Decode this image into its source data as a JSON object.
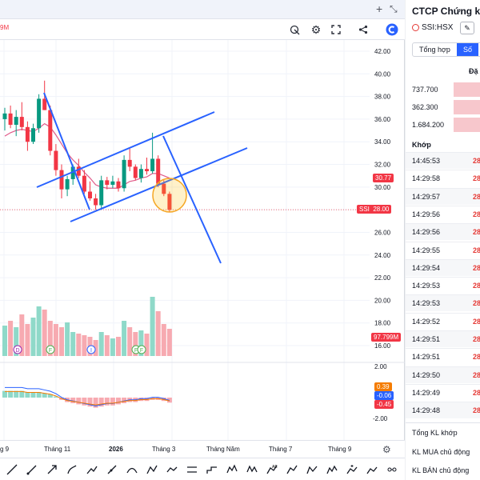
{
  "header": {
    "left_value_fragment": "9M",
    "top_icons": [
      "plus-icon",
      "expand-icon"
    ],
    "header_icons": [
      "replay-icon",
      "gear-icon",
      "fullscreen-icon",
      "share-icon",
      "logo-icon"
    ]
  },
  "chart_data": {
    "type": "candlestick",
    "price_axis_ticks": [
      "42.00",
      "40.00",
      "38.00",
      "36.00",
      "34.00",
      "32.00",
      "30.00",
      "28.00",
      "26.00",
      "24.00",
      "22.00",
      "20.00",
      "18.00",
      "16.00"
    ],
    "price_range": [
      16,
      43
    ],
    "indicator_axis_ticks": [
      "2.00",
      "-2.00"
    ],
    "current_price": {
      "symbol": "SSI",
      "value": "28.00",
      "color": "#f23645"
    },
    "ma_value": {
      "value": "30.77",
      "color": "#f23645"
    },
    "volume_label": {
      "value": "97.799M",
      "color": "#f23645"
    },
    "macd_labels": [
      {
        "value": "0.39",
        "color": "#f57c00"
      },
      {
        "value": "-0.06",
        "color": "#2962ff"
      },
      {
        "value": "-0.45",
        "color": "#f23645"
      }
    ],
    "x_labels": [
      "g 9",
      "Tháng 11",
      "2026",
      "Tháng 3",
      "Tháng Năm",
      "Tháng 7",
      "Tháng 9"
    ],
    "event_markers": [
      "D",
      "F",
      "I",
      "F",
      "F",
      "D"
    ],
    "candles": [
      {
        "o": 36.0,
        "h": 37.0,
        "l": 35.0,
        "c": 36.5
      },
      {
        "o": 36.5,
        "h": 37.2,
        "l": 35.2,
        "c": 35.5
      },
      {
        "o": 35.5,
        "h": 36.8,
        "l": 34.5,
        "c": 36.2
      },
      {
        "o": 36.2,
        "h": 37.5,
        "l": 35.0,
        "c": 35.3
      },
      {
        "o": 35.3,
        "h": 35.8,
        "l": 33.2,
        "c": 34.0
      },
      {
        "o": 34.0,
        "h": 35.6,
        "l": 33.8,
        "c": 35.2
      },
      {
        "o": 35.2,
        "h": 38.2,
        "l": 34.8,
        "c": 37.8
      },
      {
        "o": 37.8,
        "h": 39.4,
        "l": 36.8,
        "c": 36.8
      },
      {
        "o": 36.8,
        "h": 37.2,
        "l": 32.8,
        "c": 33.2
      },
      {
        "o": 33.2,
        "h": 33.8,
        "l": 31.0,
        "c": 31.5
      },
      {
        "o": 31.5,
        "h": 32.0,
        "l": 29.0,
        "c": 29.8
      },
      {
        "o": 29.8,
        "h": 31.0,
        "l": 29.2,
        "c": 30.7
      },
      {
        "o": 30.7,
        "h": 32.0,
        "l": 30.2,
        "c": 31.8
      },
      {
        "o": 31.8,
        "h": 32.5,
        "l": 30.8,
        "c": 31.0
      },
      {
        "o": 31.0,
        "h": 31.5,
        "l": 29.4,
        "c": 29.6
      },
      {
        "o": 29.6,
        "h": 30.5,
        "l": 28.8,
        "c": 29.0
      },
      {
        "o": 29.0,
        "h": 29.4,
        "l": 28.0,
        "c": 28.4
      },
      {
        "o": 28.4,
        "h": 31.0,
        "l": 28.0,
        "c": 30.6
      },
      {
        "o": 30.6,
        "h": 30.9,
        "l": 29.8,
        "c": 30.2
      },
      {
        "o": 30.2,
        "h": 31.0,
        "l": 29.9,
        "c": 30.5
      },
      {
        "o": 30.5,
        "h": 30.8,
        "l": 29.6,
        "c": 29.9
      },
      {
        "o": 29.9,
        "h": 32.8,
        "l": 29.6,
        "c": 32.4
      },
      {
        "o": 32.4,
        "h": 33.4,
        "l": 31.4,
        "c": 31.8
      },
      {
        "o": 31.8,
        "h": 32.0,
        "l": 30.6,
        "c": 30.8
      },
      {
        "o": 30.8,
        "h": 32.0,
        "l": 30.4,
        "c": 31.6
      },
      {
        "o": 31.6,
        "h": 32.6,
        "l": 31.1,
        "c": 31.4
      },
      {
        "o": 31.4,
        "h": 34.8,
        "l": 31.2,
        "c": 32.5
      },
      {
        "o": 32.5,
        "h": 32.8,
        "l": 30.0,
        "c": 30.3
      },
      {
        "o": 30.3,
        "h": 30.6,
        "l": 29.2,
        "c": 29.4
      },
      {
        "o": 29.4,
        "h": 29.6,
        "l": 27.8,
        "c": 28.0
      }
    ],
    "ma_line": [
      34.5,
      34.8,
      35.0,
      35.1,
      35.0,
      34.9,
      35.2,
      35.6,
      35.3,
      34.6,
      33.8,
      33.0,
      32.4,
      31.9,
      31.3,
      30.8,
      30.2,
      30.0,
      29.9,
      29.9,
      29.9,
      30.2,
      30.5,
      30.6,
      30.8,
      30.9,
      31.2,
      31.2,
      31.0,
      30.8
    ],
    "volumes": [
      38,
      44,
      36,
      52,
      40,
      48,
      62,
      58,
      44,
      40,
      36,
      42,
      30,
      28,
      26,
      24,
      20,
      30,
      26,
      22,
      24,
      44,
      36,
      30,
      32,
      28,
      74,
      56,
      40,
      34
    ],
    "macd_hist": [
      0.6,
      0.6,
      0.6,
      0.6,
      0.5,
      0.5,
      0.5,
      0.4,
      0.3,
      0.1,
      -0.2,
      -0.4,
      -0.5,
      -0.6,
      -0.7,
      -0.8,
      -0.9,
      -0.8,
      -0.7,
      -0.7,
      -0.6,
      -0.5,
      -0.4,
      -0.4,
      -0.3,
      -0.3,
      -0.2,
      -0.2,
      -0.3,
      -0.45
    ]
  },
  "right_panel": {
    "title": "CTCP Chứng kho",
    "symbol": "SSI:HSX",
    "tabs": [
      "Tổng hợp",
      "Số"
    ],
    "section_dat": "Đặ",
    "order_book": [
      "737.700",
      "362.300",
      "1.684.200"
    ],
    "section_khop": "Khớp",
    "trades": [
      {
        "time": "14:45:53",
        "price": "28"
      },
      {
        "time": "14:29:58",
        "price": "28"
      },
      {
        "time": "14:29:57",
        "price": "28"
      },
      {
        "time": "14:29:56",
        "price": "28"
      },
      {
        "time": "14:29:56",
        "price": "28"
      },
      {
        "time": "14:29:55",
        "price": "28"
      },
      {
        "time": "14:29:54",
        "price": "28"
      },
      {
        "time": "14:29:53",
        "price": "28"
      },
      {
        "time": "14:29:53",
        "price": "28"
      },
      {
        "time": "14:29:52",
        "price": "28"
      },
      {
        "time": "14:29:51",
        "price": "28"
      },
      {
        "time": "14:29:51",
        "price": "28"
      },
      {
        "time": "14:29:50",
        "price": "28"
      },
      {
        "time": "14:29:49",
        "price": "28"
      },
      {
        "time": "14:29:48",
        "price": "28"
      }
    ],
    "footer": [
      "Tổng KL khớp",
      "KL MUA chủ động",
      "KL BÁN chủ động"
    ]
  },
  "toolbar_icons": [
    "ruler-icon",
    "trendline-icon",
    "arrow-icon",
    "brush-icon",
    "path-icon",
    "ray-icon",
    "curve-icon",
    "pattern-icon",
    "polyline-icon",
    "line-icon",
    "step-icon",
    "elliott-icon",
    "wave-icon",
    "range-icon",
    "abcd-icon",
    "xabcd-icon",
    "cycle-icon",
    "label-icon",
    "flag-icon",
    "projection-icon",
    "trash-icon"
  ]
}
